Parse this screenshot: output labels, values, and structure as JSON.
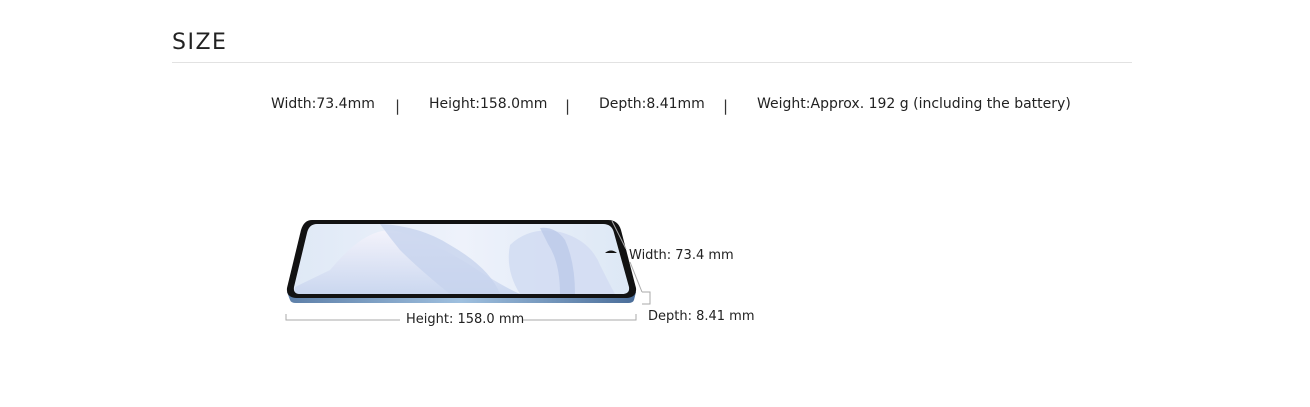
{
  "section": {
    "title": "SIZE"
  },
  "specs": [
    {
      "text": "Width:73.4mm"
    },
    {
      "text": "Height:158.0mm"
    },
    {
      "text": "Depth:8.41mm"
    },
    {
      "text": "Weight:Approx. 192 g (including the battery)"
    }
  ],
  "separator": "|",
  "diagram": {
    "width_label": "Width: 73.4 mm",
    "height_label": "Height: 158.0 mm",
    "depth_label": "Depth: 8.41 mm"
  }
}
